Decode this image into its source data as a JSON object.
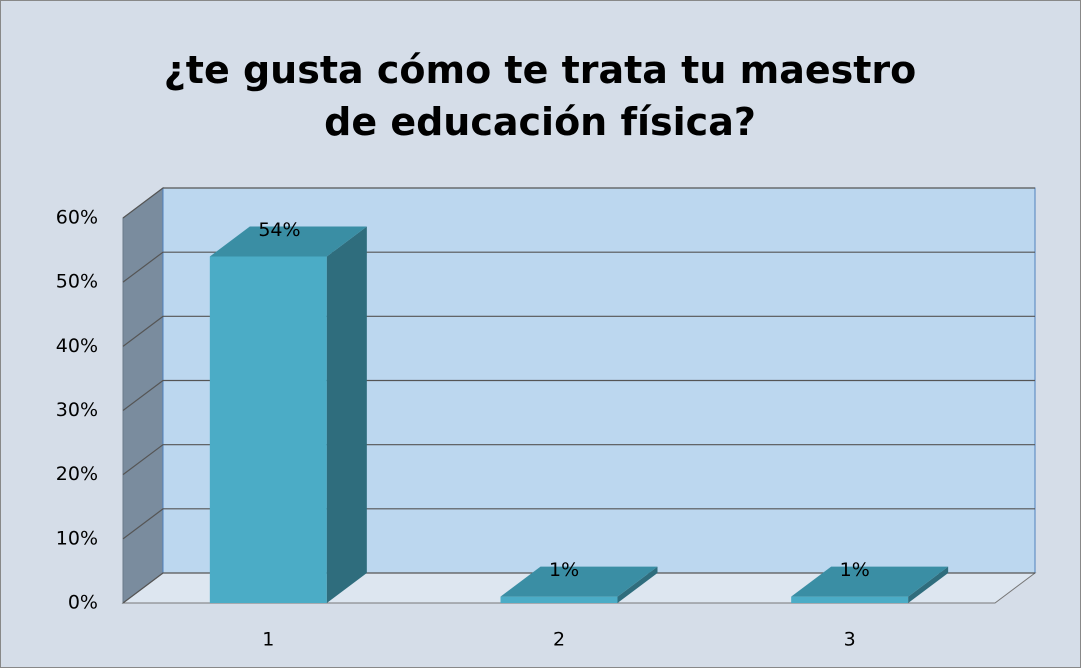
{
  "chart_data": {
    "type": "bar3d",
    "title": "¿te gusta cómo te trata tu maestro de educación física?",
    "categories": [
      "1",
      "2",
      "3"
    ],
    "values": [
      54,
      1,
      1
    ],
    "value_labels": [
      "54%",
      "1%",
      "1%"
    ],
    "color": "#4bacc6",
    "ylim": [
      0,
      60
    ],
    "yticks": [
      {
        "value": 0,
        "label": "0%"
      },
      {
        "value": 10,
        "label": "10%"
      },
      {
        "value": 20,
        "label": "20%"
      },
      {
        "value": 30,
        "label": "30%"
      },
      {
        "value": 40,
        "label": "40%"
      },
      {
        "value": 50,
        "label": "50%"
      },
      {
        "value": 60,
        "label": "60%"
      }
    ],
    "grid": true
  }
}
